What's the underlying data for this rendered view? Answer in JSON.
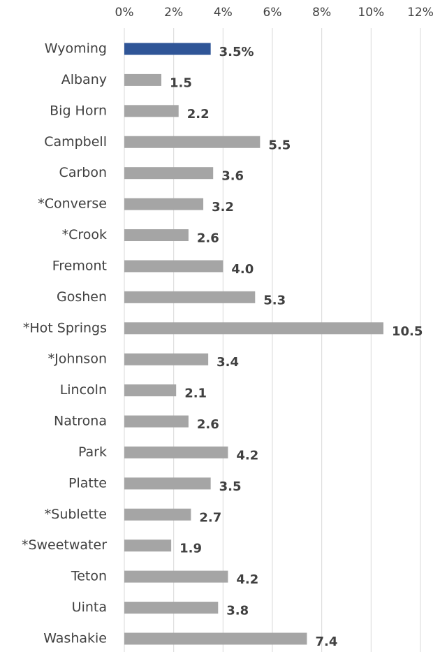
{
  "chart_data": {
    "type": "barh",
    "categories": [
      "Wyoming",
      "Albany",
      "Big Horn",
      "Campbell",
      "Carbon",
      "*Converse",
      "*Crook",
      "Fremont",
      "Goshen",
      "*Hot Springs",
      "*Johnson",
      "Lincoln",
      "Natrona",
      "Park",
      "Platte",
      "*Sublette",
      "*Sweetwater",
      "Teton",
      "Uinta",
      "Washakie"
    ],
    "values": [
      3.5,
      1.5,
      2.2,
      5.5,
      3.6,
      3.2,
      2.6,
      4.0,
      5.3,
      10.5,
      3.4,
      2.1,
      2.6,
      4.2,
      3.5,
      2.7,
      1.9,
      4.2,
      3.8,
      7.4
    ],
    "value_labels": [
      "3.5%",
      "1.5",
      "2.2",
      "5.5",
      "3.6",
      "3.2",
      "2.6",
      "4.0",
      "5.3",
      "10.5",
      "3.4",
      "2.1",
      "2.6",
      "4.2",
      "3.5",
      "2.7",
      "1.9",
      "4.2",
      "3.8",
      "7.4"
    ],
    "colors": [
      "#2f5597",
      "#a5a5a5",
      "#a5a5a5",
      "#a5a5a5",
      "#a5a5a5",
      "#a5a5a5",
      "#a5a5a5",
      "#a5a5a5",
      "#a5a5a5",
      "#a5a5a5",
      "#a5a5a5",
      "#a5a5a5",
      "#a5a5a5",
      "#a5a5a5",
      "#a5a5a5",
      "#a5a5a5",
      "#a5a5a5",
      "#a5a5a5",
      "#a5a5a5",
      "#a5a5a5"
    ],
    "xlim": [
      0,
      12
    ],
    "xticks": [
      {
        "value": 0,
        "label": "0%"
      },
      {
        "value": 2,
        "label": "2%"
      },
      {
        "value": 4,
        "label": "4%"
      },
      {
        "value": 6,
        "label": "6%"
      },
      {
        "value": 8,
        "label": "8%"
      },
      {
        "value": 10,
        "label": "10%"
      },
      {
        "value": 12,
        "label": "12%"
      }
    ],
    "grid": true
  }
}
